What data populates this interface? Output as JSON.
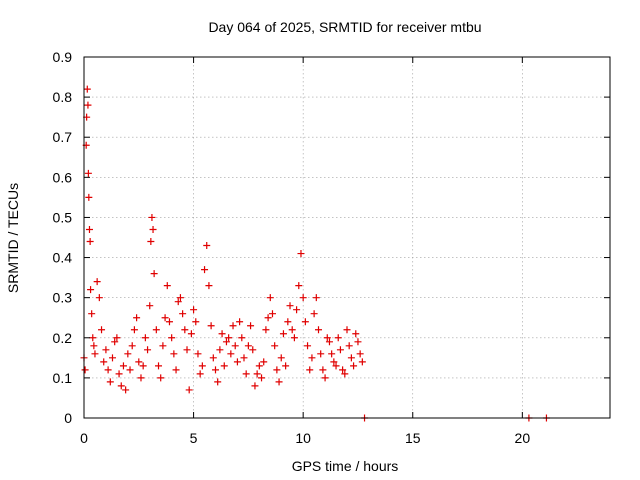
{
  "chart_data": {
    "type": "scatter",
    "title": "Day 064 of 2025, SRMTID for receiver mtbu",
    "xlabel": "GPS time / hours",
    "ylabel": "SRMTID / TECUs",
    "xlim": [
      0,
      24
    ],
    "ylim": [
      0,
      0.9
    ],
    "xticks": [
      0,
      5,
      10,
      15,
      20
    ],
    "xtick_labels": [
      "0",
      "5",
      "10",
      "15",
      "20"
    ],
    "yticks": [
      0,
      0.1,
      0.2,
      0.3,
      0.4,
      0.5,
      0.6,
      0.7,
      0.8,
      0.9
    ],
    "ytick_labels": [
      "0",
      "0.1",
      "0.2",
      "0.3",
      "0.4",
      "0.5",
      "0.6",
      "0.7",
      "0.8",
      "0.9"
    ],
    "grid": true,
    "marker": "+",
    "marker_color": "#e00000",
    "series": [
      {
        "name": "SRMTID",
        "x": [
          0.0,
          0.05,
          0.1,
          0.12,
          0.15,
          0.18,
          0.2,
          0.22,
          0.25,
          0.28,
          0.3,
          0.35,
          0.4,
          0.45,
          0.5,
          0.6,
          0.7,
          0.8,
          0.9,
          1.0,
          1.1,
          1.2,
          1.3,
          1.4,
          1.5,
          1.6,
          1.7,
          1.8,
          1.9,
          2.0,
          2.1,
          2.2,
          2.3,
          2.4,
          2.5,
          2.6,
          2.7,
          2.8,
          2.9,
          3.0,
          3.05,
          3.1,
          3.15,
          3.2,
          3.3,
          3.4,
          3.5,
          3.6,
          3.7,
          3.8,
          3.9,
          4.0,
          4.1,
          4.2,
          4.3,
          4.4,
          4.5,
          4.6,
          4.7,
          4.8,
          4.9,
          5.0,
          5.1,
          5.2,
          5.3,
          5.4,
          5.5,
          5.6,
          5.7,
          5.8,
          5.9,
          6.0,
          6.1,
          6.2,
          6.3,
          6.4,
          6.5,
          6.6,
          6.7,
          6.8,
          6.9,
          7.0,
          7.1,
          7.2,
          7.3,
          7.4,
          7.5,
          7.6,
          7.7,
          7.8,
          7.9,
          8.0,
          8.1,
          8.2,
          8.3,
          8.4,
          8.5,
          8.6,
          8.7,
          8.8,
          8.9,
          9.0,
          9.1,
          9.2,
          9.3,
          9.4,
          9.5,
          9.6,
          9.7,
          9.8,
          9.9,
          10.0,
          10.1,
          10.2,
          10.3,
          10.4,
          10.5,
          10.6,
          10.7,
          10.8,
          10.9,
          11.0,
          11.1,
          11.2,
          11.3,
          11.4,
          11.5,
          11.6,
          11.7,
          11.8,
          11.9,
          12.0,
          12.1,
          12.2,
          12.3,
          12.4,
          12.5,
          12.6,
          12.7,
          12.8,
          20.3,
          21.1
        ],
        "y": [
          0.15,
          0.12,
          0.68,
          0.75,
          0.82,
          0.78,
          0.61,
          0.55,
          0.47,
          0.44,
          0.32,
          0.26,
          0.2,
          0.18,
          0.16,
          0.34,
          0.3,
          0.22,
          0.14,
          0.17,
          0.12,
          0.09,
          0.15,
          0.19,
          0.2,
          0.11,
          0.08,
          0.13,
          0.07,
          0.16,
          0.12,
          0.18,
          0.22,
          0.25,
          0.14,
          0.1,
          0.13,
          0.2,
          0.17,
          0.28,
          0.44,
          0.5,
          0.47,
          0.36,
          0.22,
          0.13,
          0.1,
          0.18,
          0.25,
          0.33,
          0.24,
          0.2,
          0.16,
          0.12,
          0.29,
          0.3,
          0.26,
          0.22,
          0.17,
          0.07,
          0.21,
          0.27,
          0.24,
          0.16,
          0.11,
          0.13,
          0.37,
          0.43,
          0.33,
          0.23,
          0.15,
          0.12,
          0.09,
          0.17,
          0.21,
          0.13,
          0.19,
          0.2,
          0.16,
          0.23,
          0.18,
          0.14,
          0.24,
          0.2,
          0.15,
          0.11,
          0.18,
          0.23,
          0.17,
          0.08,
          0.11,
          0.13,
          0.1,
          0.14,
          0.22,
          0.25,
          0.3,
          0.26,
          0.18,
          0.12,
          0.09,
          0.15,
          0.21,
          0.13,
          0.24,
          0.28,
          0.22,
          0.2,
          0.27,
          0.33,
          0.41,
          0.3,
          0.24,
          0.18,
          0.12,
          0.15,
          0.26,
          0.3,
          0.22,
          0.16,
          0.12,
          0.1,
          0.2,
          0.19,
          0.16,
          0.14,
          0.13,
          0.2,
          0.17,
          0.12,
          0.11,
          0.22,
          0.18,
          0.15,
          0.13,
          0.21,
          0.19,
          0.16,
          0.14,
          0.0,
          0.0,
          0.0
        ]
      }
    ]
  }
}
